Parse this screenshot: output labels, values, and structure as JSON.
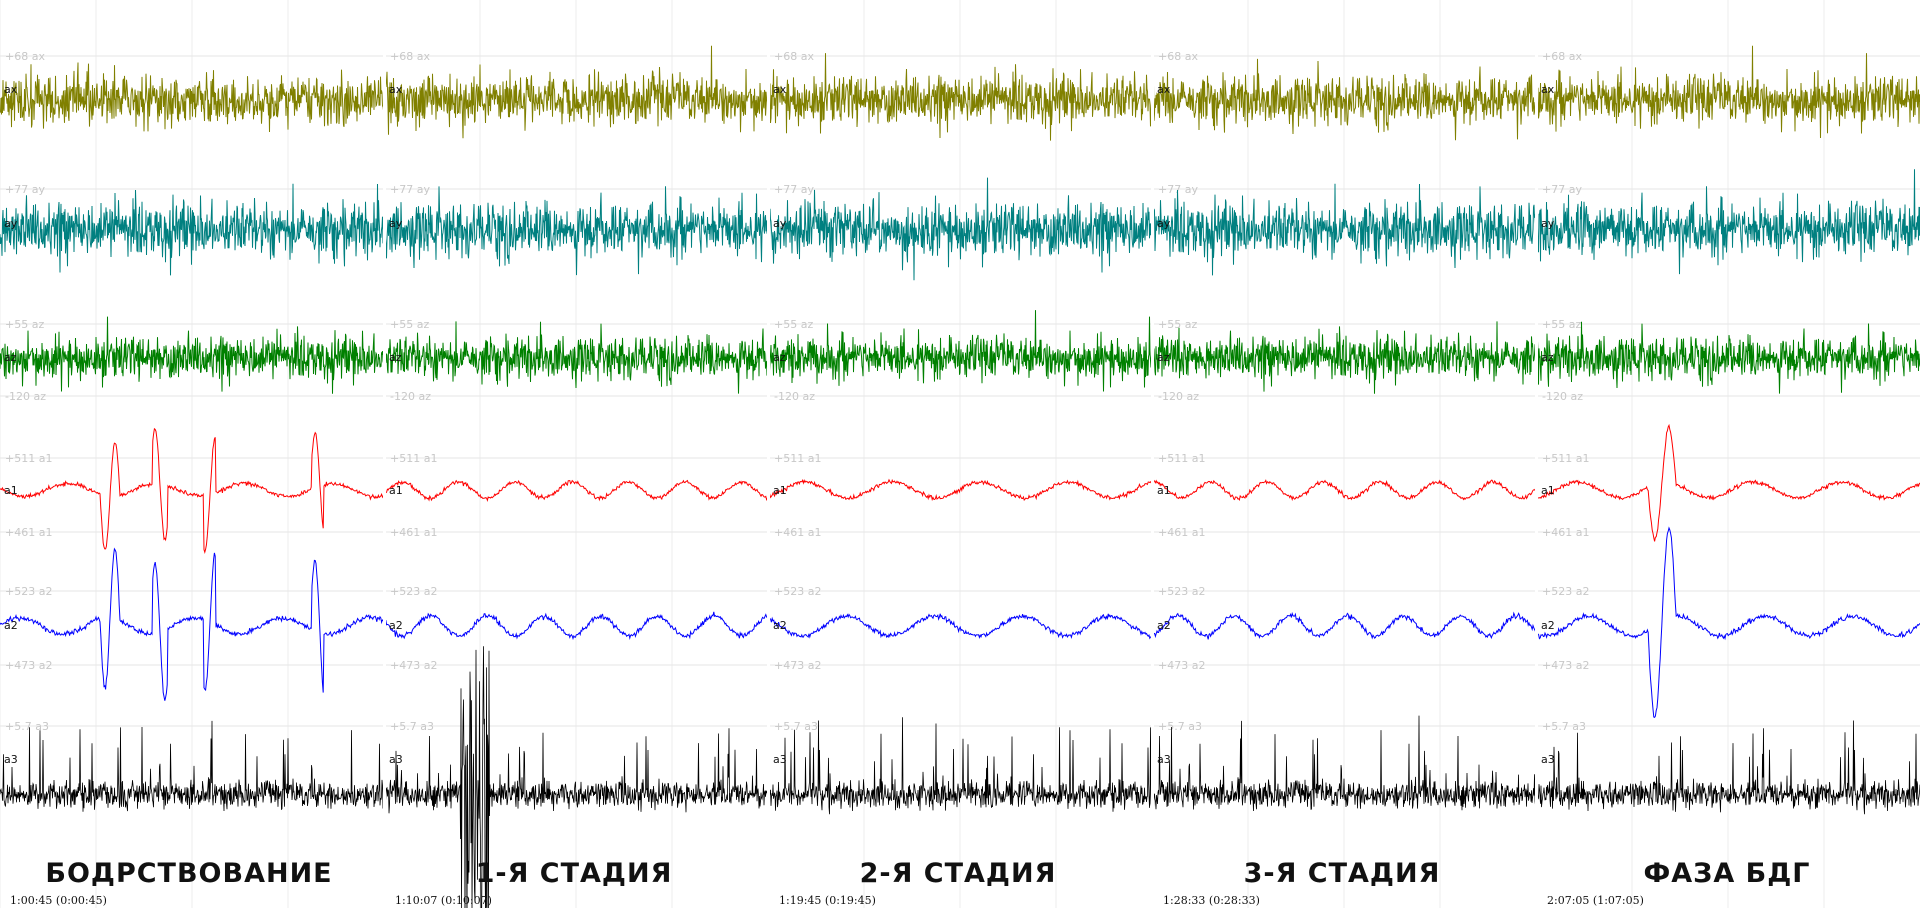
{
  "chart_data": {
    "type": "line",
    "title": "",
    "xlabel": "",
    "ylabel": "",
    "grid": true,
    "panels": [
      {
        "stage": "БОДРСТВОВАНИЕ",
        "time": "1:00:45 (0:00:45)"
      },
      {
        "stage": "1-Я СТАДИЯ",
        "time": "1:10:07 (0:10:07)"
      },
      {
        "stage": "2-Я СТАДИЯ",
        "time": "1:19:45 (0:19:45)"
      },
      {
        "stage": "3-Я СТАДИЯ",
        "time": "1:28:33 (0:28:33)"
      },
      {
        "stage": "ФАЗА БДГ",
        "time": "2:07:05 (1:07:05)"
      }
    ],
    "channels": [
      {
        "name": "ax",
        "color": "#808000",
        "scale_top": "+68 ax",
        "scale_bottom": ""
      },
      {
        "name": "ay",
        "color": "#008080",
        "scale_top": "+77 ay",
        "scale_bottom": ""
      },
      {
        "name": "az",
        "color": "#008000",
        "scale_top": "+55 az",
        "scale_bottom": "-120 az"
      },
      {
        "name": "a1",
        "color": "#ff0000",
        "scale_top": "+511 a1",
        "scale_bottom": "+461 a1"
      },
      {
        "name": "a2",
        "color": "#0000ff",
        "scale_top": "+523 a2",
        "scale_bottom": "+473 a2"
      },
      {
        "name": "a3",
        "color": "#000000",
        "scale_top": "+5.7 a3",
        "scale_bottom": ""
      }
    ]
  }
}
